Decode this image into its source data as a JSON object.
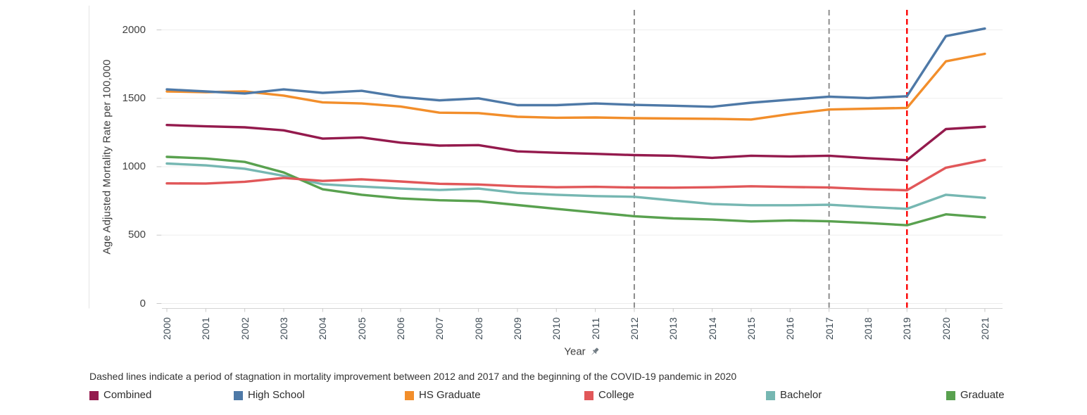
{
  "chart_data": {
    "type": "line",
    "x": [
      2000,
      2001,
      2002,
      2003,
      2004,
      2005,
      2006,
      2007,
      2008,
      2009,
      2010,
      2011,
      2012,
      2013,
      2014,
      2015,
      2016,
      2017,
      2018,
      2019,
      2020,
      2021
    ],
    "xlabel": "Year",
    "ylabel": "Age Adjusted Mortality Rate per 100,000",
    "ylim": [
      0,
      2150
    ],
    "yticks": [
      0,
      500,
      1000,
      1500,
      2000
    ],
    "grid": "horizontal",
    "legend_position": "bottom",
    "series": [
      {
        "name": "Combined",
        "color": "#941a4d",
        "values": [
          1305,
          1295,
          1288,
          1266,
          1205,
          1214,
          1176,
          1154,
          1158,
          1112,
          1102,
          1094,
          1085,
          1080,
          1065,
          1080,
          1075,
          1080,
          1062,
          1048,
          1275,
          1292
        ]
      },
      {
        "name": "High School",
        "color": "#4e79a7",
        "values": [
          1565,
          1550,
          1535,
          1565,
          1540,
          1555,
          1510,
          1485,
          1500,
          1450,
          1450,
          1462,
          1452,
          1446,
          1438,
          1468,
          1490,
          1512,
          1502,
          1515,
          1955,
          2010
        ]
      },
      {
        "name": "HS Graduate",
        "color": "#f28e2b",
        "values": [
          1550,
          1545,
          1550,
          1520,
          1470,
          1462,
          1440,
          1395,
          1392,
          1365,
          1358,
          1360,
          1355,
          1352,
          1350,
          1345,
          1385,
          1418,
          1424,
          1430,
          1770,
          1825
        ]
      },
      {
        "name": "College",
        "color": "#e15759",
        "values": [
          878,
          877,
          890,
          918,
          896,
          908,
          892,
          875,
          870,
          857,
          850,
          853,
          848,
          847,
          850,
          857,
          852,
          848,
          836,
          828,
          993,
          1050
        ]
      },
      {
        "name": "Bachelor",
        "color": "#76b7b2",
        "values": [
          1023,
          1010,
          985,
          933,
          872,
          855,
          840,
          830,
          840,
          808,
          795,
          785,
          780,
          753,
          727,
          718,
          718,
          722,
          706,
          692,
          795,
          772
        ]
      },
      {
        "name": "Graduate",
        "color": "#59a14f",
        "values": [
          1072,
          1060,
          1035,
          958,
          835,
          795,
          768,
          755,
          748,
          720,
          692,
          665,
          638,
          622,
          614,
          600,
          607,
          601,
          588,
          572,
          652,
          630
        ]
      }
    ],
    "reference_lines": [
      {
        "x": 2012,
        "style": "dashed",
        "color": "#8d8d8d"
      },
      {
        "x": 2017,
        "style": "dashed",
        "color": "#8d8d8d"
      },
      {
        "x": 2019,
        "style": "dashed",
        "color": "#fc0000"
      }
    ]
  },
  "axes": {
    "x_title": "Year",
    "y_title": "Age Adjusted Mortality Rate per 100,000"
  },
  "caption": "Dashed lines indicate a period of stagnation in mortality improvement between 2012 and 2017 and the beginning of the COVID-19 pandemic in 2020",
  "legend": {
    "items": [
      "Combined",
      "High School",
      "HS Graduate",
      "College",
      "Bachelor",
      "Graduate"
    ]
  }
}
